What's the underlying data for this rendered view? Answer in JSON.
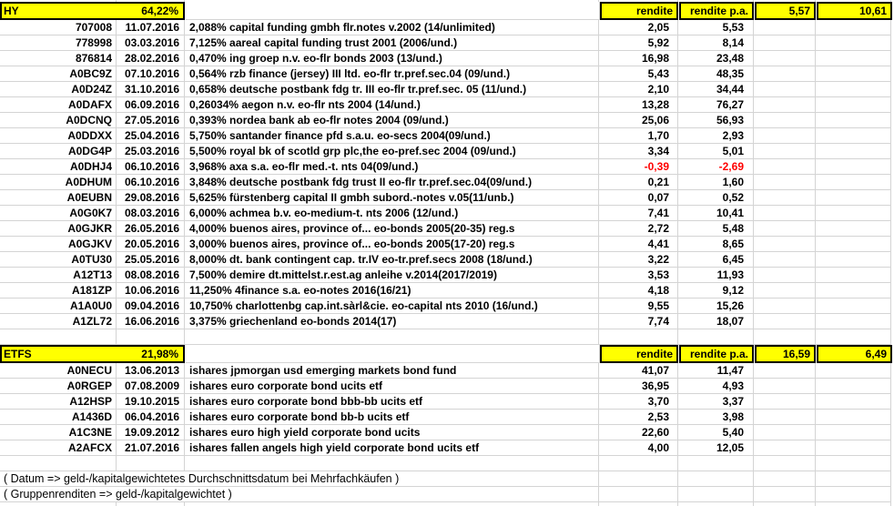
{
  "sections": {
    "hy": {
      "label": "HY",
      "weight": "64,22%",
      "col_rendite_label": "rendite",
      "col_rendite_pa_label": "rendite p.a.",
      "total_rendite": "5,57",
      "total_rendite_pa": "10,61",
      "rows": [
        {
          "wkn": "707008",
          "date": "11.07.2016",
          "name": "2,088% capital funding gmbh flr.notes v.2002 (14/unlimited)",
          "rendite": "2,05",
          "rendite_pa": "5,53"
        },
        {
          "wkn": "778998",
          "date": "03.03.2016",
          "name": "7,125% aareal capital funding trust 2001 (2006/und.)",
          "rendite": "5,92",
          "rendite_pa": "8,14"
        },
        {
          "wkn": "876814",
          "date": "28.02.2016",
          "name": "0,470% ing groep n.v. eo-flr bonds 2003 (13/und.)",
          "rendite": "16,98",
          "rendite_pa": "23,48"
        },
        {
          "wkn": "A0BC9Z",
          "date": "07.10.2016",
          "name": "0,564% rzb finance (jersey) III ltd. eo-flr tr.pref.sec.04 (09/und.)",
          "rendite": "5,43",
          "rendite_pa": "48,35"
        },
        {
          "wkn": "A0D24Z",
          "date": "31.10.2016",
          "name": "0,658% deutsche postbank fdg tr. III eo-flr tr.pref.sec. 05 (11/und.)",
          "rendite": "2,10",
          "rendite_pa": "34,44"
        },
        {
          "wkn": "A0DAFX",
          "date": "06.09.2016",
          "name": "0,26034% aegon n.v. eo-flr nts 2004 (14/und.)",
          "rendite": "13,28",
          "rendite_pa": "76,27"
        },
        {
          "wkn": "A0DCNQ",
          "date": "27.05.2016",
          "name": "0,393% nordea bank ab eo-flr notes 2004 (09/und.)",
          "rendite": "25,06",
          "rendite_pa": "56,93"
        },
        {
          "wkn": "A0DDXX",
          "date": "25.04.2016",
          "name": "5,750% santander finance pfd s.a.u. eo-secs 2004(09/und.)",
          "rendite": "1,70",
          "rendite_pa": "2,93"
        },
        {
          "wkn": "A0DG4P",
          "date": "25.03.2016",
          "name": "5,500% royal bk of scotld grp plc,the eo-pref.sec 2004 (09/und.)",
          "rendite": "3,34",
          "rendite_pa": "5,01"
        },
        {
          "wkn": "A0DHJ4",
          "date": "06.10.2016",
          "name": "3,968% axa s.a. eo-flr med.-t. nts 04(09/und.)",
          "rendite": "-0,39",
          "rendite_pa": "-2,69",
          "negative": true
        },
        {
          "wkn": "A0DHUM",
          "date": "06.10.2016",
          "name": "3,848% deutsche postbank fdg trust II eo-flr tr.pref.sec.04(09/und.)",
          "rendite": "0,21",
          "rendite_pa": "1,60"
        },
        {
          "wkn": "A0EUBN",
          "date": "29.08.2016",
          "name": "5,625% fürstenberg capital II gmbh subord.-notes v.05(11/unb.)",
          "rendite": "0,07",
          "rendite_pa": "0,52"
        },
        {
          "wkn": "A0G0K7",
          "date": "08.03.2016",
          "name": "6,000% achmea b.v. eo-medium-t. nts 2006 (12/und.)",
          "rendite": "7,41",
          "rendite_pa": "10,41"
        },
        {
          "wkn": "A0GJKR",
          "date": "26.05.2016",
          "name": "4,000% buenos aires, province of... eo-bonds 2005(20-35) reg.s",
          "rendite": "2,72",
          "rendite_pa": "5,48"
        },
        {
          "wkn": "A0GJKV",
          "date": "20.05.2016",
          "name": "3,000% buenos aires, province of... eo-bonds 2005(17-20) reg.s",
          "rendite": "4,41",
          "rendite_pa": "8,65"
        },
        {
          "wkn": "A0TU30",
          "date": "25.05.2016",
          "name": "8,000% dt. bank contingent cap. tr.IV eo-tr.pref.secs 2008 (18/und.)",
          "rendite": "3,22",
          "rendite_pa": "6,45"
        },
        {
          "wkn": "A12T13",
          "date": "08.08.2016",
          "name": "7,500% demire dt.mittelst.r.est.ag anleihe v.2014(2017/2019)",
          "rendite": "3,53",
          "rendite_pa": "11,93"
        },
        {
          "wkn": "A181ZP",
          "date": "10.06.2016",
          "name": "11,250% 4finance s.a. eo-notes 2016(16/21)",
          "rendite": "4,18",
          "rendite_pa": "9,12"
        },
        {
          "wkn": "A1A0U0",
          "date": "09.04.2016",
          "name": "10,750% charlottenbg cap.int.sàrl&cie. eo-capital nts 2010 (16/und.)",
          "rendite": "9,55",
          "rendite_pa": "15,26"
        },
        {
          "wkn": "A1ZL72",
          "date": "16.06.2016",
          "name": "3,375% griechenland eo-bonds 2014(17)",
          "rendite": "7,74",
          "rendite_pa": "18,07"
        }
      ]
    },
    "etfs": {
      "label": "ETFS",
      "weight": "21,98%",
      "col_rendite_label": "rendite",
      "col_rendite_pa_label": "rendite p.a.",
      "total_rendite": "16,59",
      "total_rendite_pa": "6,49",
      "rows": [
        {
          "wkn": "A0NECU",
          "date": "13.06.2013",
          "name": "ishares jpmorgan usd emerging markets bond fund",
          "rendite": "41,07",
          "rendite_pa": "11,47"
        },
        {
          "wkn": "A0RGEP",
          "date": "07.08.2009",
          "name": "ishares euro corporate bond ucits etf",
          "rendite": "36,95",
          "rendite_pa": "4,93"
        },
        {
          "wkn": "A12HSP",
          "date": "19.10.2015",
          "name": "ishares euro corporate bond bbb-bb ucits etf",
          "rendite": "3,70",
          "rendite_pa": "3,37"
        },
        {
          "wkn": "A1436D",
          "date": "06.04.2016",
          "name": "ishares euro corporate bond bb-b ucits etf",
          "rendite": "2,53",
          "rendite_pa": "3,98"
        },
        {
          "wkn": "A1C3NE",
          "date": "19.09.2012",
          "name": "ishares euro high yield corporate bond ucits",
          "rendite": "22,60",
          "rendite_pa": "5,40"
        },
        {
          "wkn": "A2AFCX",
          "date": "21.07.2016",
          "name": "ishares fallen angels high yield corporate bond ucits etf",
          "rendite": "4,00",
          "rendite_pa": "12,05"
        }
      ]
    }
  },
  "notes": {
    "datum": "( Datum => geld-/kapitalgewichtetes Durchschnittsdatum bei Mehrfachkäufen )",
    "gruppenrenditen": "( Gruppenrenditen => geld-/kapitalgewichtet )"
  },
  "colors": {
    "highlight": "#ffff00",
    "negative": "#ff0000",
    "gridline": "#d4d4d4"
  }
}
